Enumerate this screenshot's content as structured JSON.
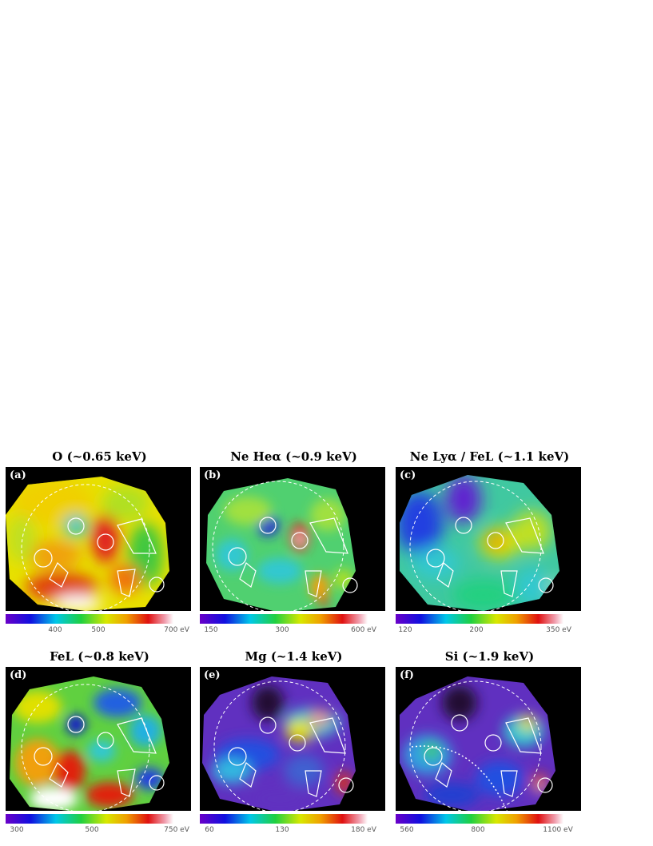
{
  "figure": {
    "panels": [
      {
        "label": "(a)",
        "title": "O (~0.65 keV)",
        "colorbar": {
          "ticks": [
            "400",
            "500",
            "700 eV"
          ]
        },
        "scheme": "a"
      },
      {
        "label": "(b)",
        "title": "Ne Heα (~0.9 keV)",
        "colorbar": {
          "ticks": [
            "150",
            "300",
            "600 eV"
          ]
        },
        "scheme": "b"
      },
      {
        "label": "(c)",
        "title": "Ne Lyα / FeL (~1.1 keV)",
        "colorbar": {
          "ticks": [
            "120",
            "200",
            "350 eV"
          ]
        },
        "scheme": "c"
      },
      {
        "label": "(d)",
        "title": "FeL (~0.8 keV)",
        "colorbar": {
          "ticks": [
            "300",
            "500",
            "750 eV"
          ]
        },
        "scheme": "d"
      },
      {
        "label": "(e)",
        "title": "Mg (~1.4 keV)",
        "colorbar": {
          "ticks": [
            "60",
            "130",
            "180 eV"
          ]
        },
        "scheme": "e"
      },
      {
        "label": "(f)",
        "title": "Si (~1.9 keV)",
        "colorbar": {
          "ticks": [
            "560",
            "800",
            "1100 eV"
          ]
        },
        "scheme": "f"
      }
    ]
  }
}
